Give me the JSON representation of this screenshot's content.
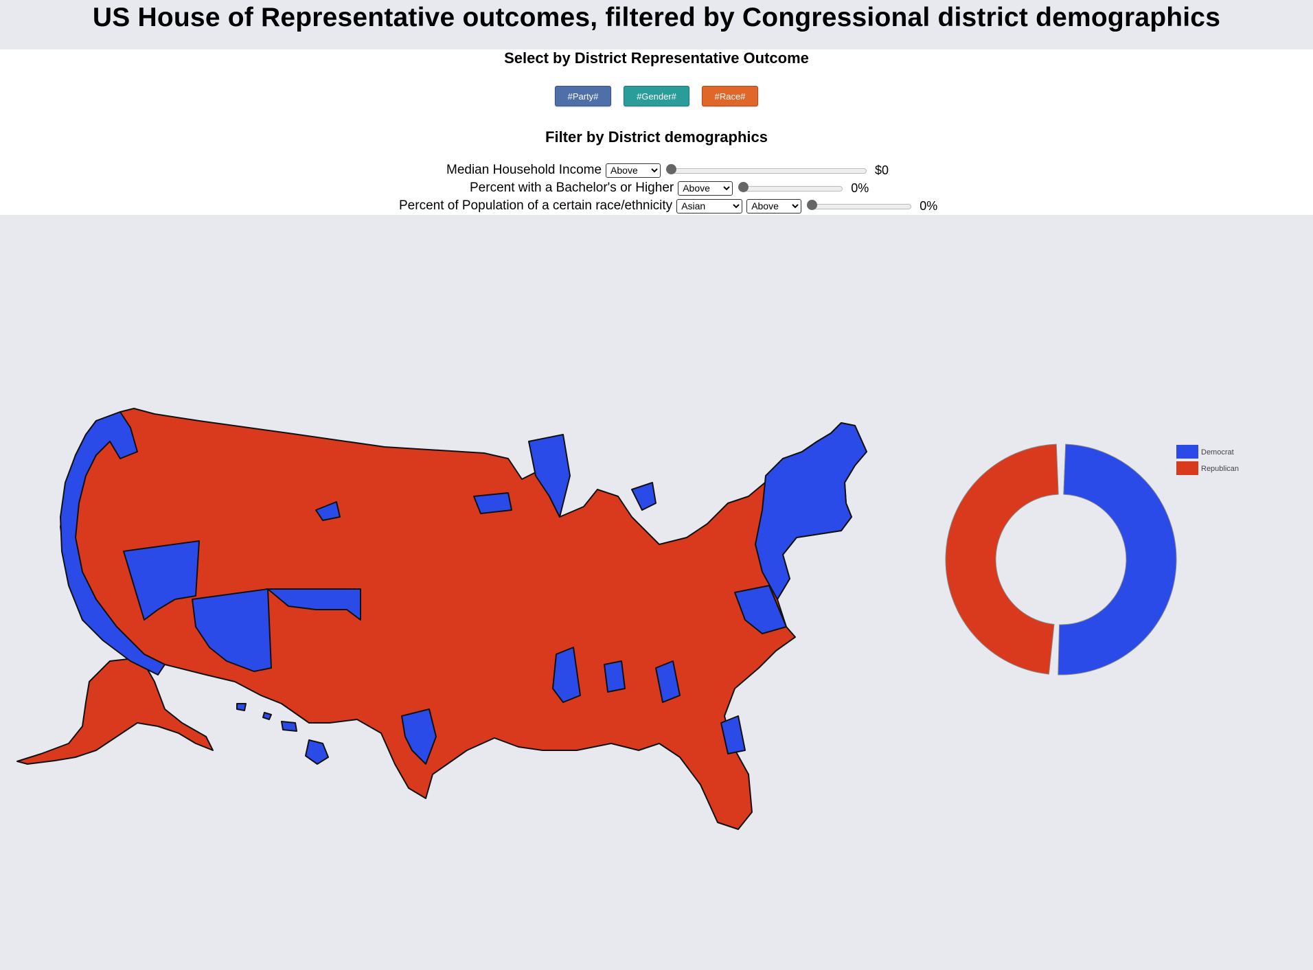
{
  "header": {
    "title": "US House of Representative outcomes, filtered by Congressional district demographics"
  },
  "outcome_section": {
    "title": "Select by District Representative Outcome",
    "buttons": [
      {
        "label": "#Party#",
        "color": "#4e6fa8"
      },
      {
        "label": "#Gender#",
        "color": "#2a9d9b"
      },
      {
        "label": "#Race#",
        "color": "#e0662a"
      }
    ]
  },
  "filter_section": {
    "title": "Filter by District demographics",
    "income": {
      "label": "Median Household Income",
      "comparator": "Above",
      "value_text": "$0",
      "level": 0
    },
    "education": {
      "label": "Percent with a Bachelor's or Higher",
      "comparator": "Above",
      "value_text": "0%",
      "level": 0
    },
    "race": {
      "label": "Percent of Population of a certain race/ethnicity",
      "group": "Asian",
      "comparator": "Above",
      "value_text": "0%",
      "level": 0
    }
  },
  "map": {
    "colors": {
      "democrat": "#2b4be8",
      "republican": "#d9391c",
      "border": "#111111"
    }
  },
  "chart_data": {
    "type": "pie",
    "donut": true,
    "series": [
      {
        "name": "Democrat",
        "value": 222,
        "color": "#2b4be8"
      },
      {
        "name": "Republican",
        "value": 213,
        "color": "#d9391c"
      }
    ]
  },
  "legend": {
    "items": [
      {
        "label": "Democrat",
        "color": "#2b4be8"
      },
      {
        "label": "Republican",
        "color": "#d9391c"
      }
    ]
  }
}
